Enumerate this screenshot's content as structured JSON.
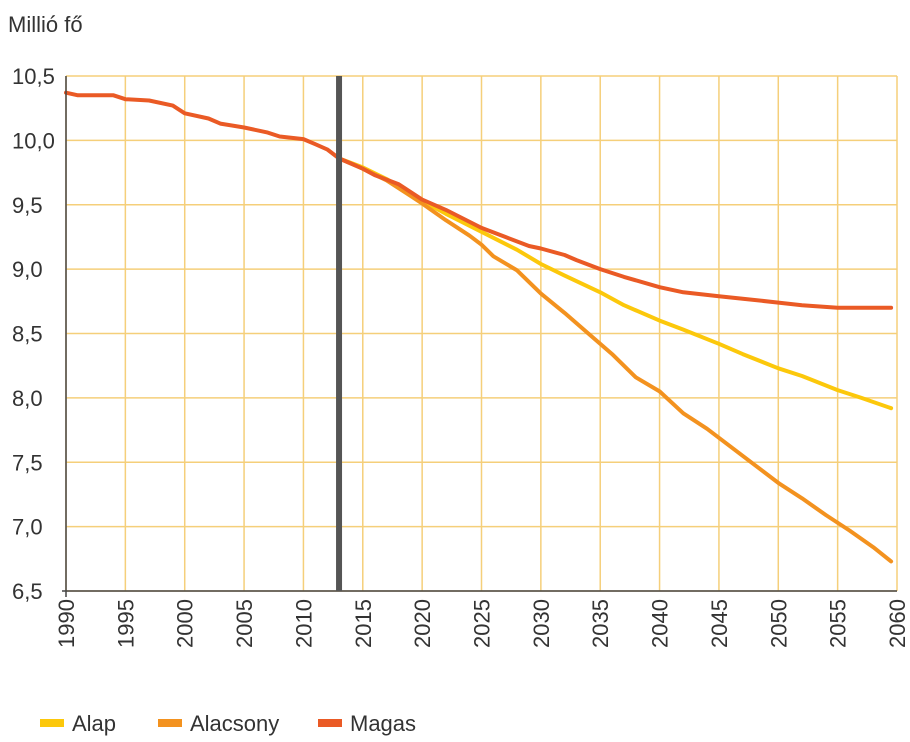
{
  "chart_data": {
    "type": "line",
    "ylabel": "Millió fő",
    "xlim": [
      1990,
      2060
    ],
    "ylim": [
      6.5,
      10.5
    ],
    "x_ticks": [
      "1990",
      "1995",
      "2000",
      "2005",
      "2010",
      "2015",
      "2020",
      "2025",
      "2030",
      "2035",
      "2040",
      "2045",
      "2050",
      "2055",
      "2060"
    ],
    "y_ticks": [
      "6,5",
      "7,0",
      "7,5",
      "8,0",
      "8,5",
      "9,0",
      "9,5",
      "10,0",
      "10,5"
    ],
    "grid": true,
    "marker_line_x": 2013,
    "legend_position": "bottom-left",
    "colors": {
      "grid": "#f5cf7a",
      "marker": "#555555",
      "axis": "#444444"
    },
    "series": [
      {
        "name": "Alap",
        "color": "#fcc80b",
        "points": [
          [
            2013,
            9.86
          ],
          [
            2015,
            9.79
          ],
          [
            2017,
            9.7
          ],
          [
            2019,
            9.59
          ],
          [
            2020,
            9.53
          ],
          [
            2022,
            9.43
          ],
          [
            2025,
            9.29
          ],
          [
            2028,
            9.15
          ],
          [
            2030,
            9.04
          ],
          [
            2032,
            8.95
          ],
          [
            2035,
            8.82
          ],
          [
            2037,
            8.72
          ],
          [
            2040,
            8.6
          ],
          [
            2042,
            8.53
          ],
          [
            2045,
            8.42
          ],
          [
            2047,
            8.34
          ],
          [
            2050,
            8.23
          ],
          [
            2052,
            8.17
          ],
          [
            2055,
            8.06
          ],
          [
            2057,
            8.0
          ],
          [
            2059.5,
            7.92
          ]
        ]
      },
      {
        "name": "Alacsony",
        "color": "#f3921f",
        "points": [
          [
            2013,
            9.86
          ],
          [
            2015,
            9.78
          ],
          [
            2017,
            9.69
          ],
          [
            2019,
            9.57
          ],
          [
            2020,
            9.51
          ],
          [
            2022,
            9.38
          ],
          [
            2024,
            9.26
          ],
          [
            2025,
            9.19
          ],
          [
            2026,
            9.1
          ],
          [
            2028,
            8.99
          ],
          [
            2030,
            8.81
          ],
          [
            2032,
            8.66
          ],
          [
            2034,
            8.5
          ],
          [
            2036,
            8.34
          ],
          [
            2038,
            8.16
          ],
          [
            2040,
            8.05
          ],
          [
            2042,
            7.88
          ],
          [
            2044,
            7.76
          ],
          [
            2046,
            7.62
          ],
          [
            2048,
            7.48
          ],
          [
            2050,
            7.34
          ],
          [
            2052,
            7.22
          ],
          [
            2054,
            7.09
          ],
          [
            2056,
            6.97
          ],
          [
            2058,
            6.84
          ],
          [
            2059.5,
            6.73
          ]
        ]
      },
      {
        "name": "Magas",
        "color": "#ea5a25",
        "points": [
          [
            1990,
            10.37
          ],
          [
            1991,
            10.35
          ],
          [
            1994,
            10.35
          ],
          [
            1995,
            10.32
          ],
          [
            1997,
            10.31
          ],
          [
            1999,
            10.27
          ],
          [
            2000,
            10.21
          ],
          [
            2002,
            10.17
          ],
          [
            2003,
            10.13
          ],
          [
            2005,
            10.1
          ],
          [
            2007,
            10.06
          ],
          [
            2008,
            10.03
          ],
          [
            2010,
            10.01
          ],
          [
            2011,
            9.97
          ],
          [
            2012,
            9.93
          ],
          [
            2013,
            9.86
          ],
          [
            2014,
            9.82
          ],
          [
            2015,
            9.78
          ],
          [
            2016,
            9.73
          ],
          [
            2018,
            9.66
          ],
          [
            2020,
            9.54
          ],
          [
            2022,
            9.46
          ],
          [
            2025,
            9.32
          ],
          [
            2027,
            9.25
          ],
          [
            2029,
            9.18
          ],
          [
            2030,
            9.16
          ],
          [
            2032,
            9.11
          ],
          [
            2033,
            9.07
          ],
          [
            2035,
            9.0
          ],
          [
            2037,
            8.94
          ],
          [
            2040,
            8.86
          ],
          [
            2042,
            8.82
          ],
          [
            2045,
            8.79
          ],
          [
            2047,
            8.77
          ],
          [
            2050,
            8.74
          ],
          [
            2052,
            8.72
          ],
          [
            2055,
            8.7
          ],
          [
            2057,
            8.7
          ],
          [
            2059.5,
            8.7
          ]
        ]
      }
    ]
  }
}
